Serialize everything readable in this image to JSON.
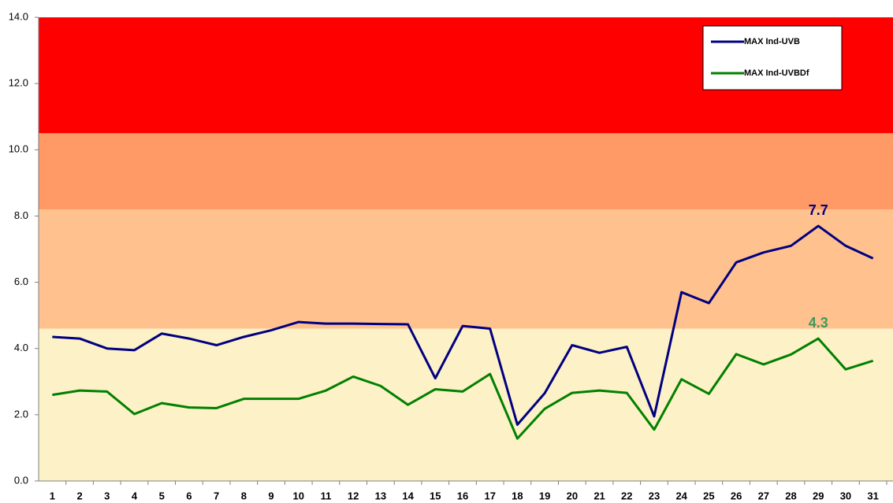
{
  "chart_data": {
    "type": "line",
    "categories": [
      "1",
      "2",
      "3",
      "4",
      "5",
      "6",
      "7",
      "8",
      "9",
      "10",
      "11",
      "12",
      "13",
      "14",
      "15",
      "16",
      "17",
      "18",
      "19",
      "20",
      "21",
      "22",
      "23",
      "24",
      "25",
      "26",
      "27",
      "28",
      "29",
      "30",
      "31"
    ],
    "series": [
      {
        "name": "MAX Ind-UVB",
        "color": "#000080",
        "label_color": "#000080",
        "values": [
          4.35,
          4.3,
          4.0,
          3.95,
          4.45,
          4.3,
          4.1,
          4.35,
          4.55,
          4.8,
          4.75,
          4.75,
          4.74,
          4.73,
          3.1,
          4.68,
          4.6,
          1.7,
          2.65,
          4.1,
          3.87,
          4.05,
          1.95,
          5.7,
          5.37,
          6.6,
          6.9,
          7.1,
          7.7,
          7.1,
          6.72
        ],
        "value_labels": [
          null,
          null,
          null,
          null,
          null,
          null,
          null,
          null,
          null,
          null,
          null,
          null,
          null,
          null,
          null,
          null,
          null,
          null,
          null,
          null,
          null,
          null,
          null,
          null,
          null,
          null,
          null,
          null,
          "7.7",
          null,
          null
        ]
      },
      {
        "name": "MAX Ind-UVBDf",
        "color": "#008000",
        "label_color": "#3a9a5a",
        "values": [
          2.6,
          2.73,
          2.7,
          2.02,
          2.35,
          2.22,
          2.2,
          2.48,
          2.48,
          2.48,
          2.73,
          3.15,
          2.87,
          2.3,
          2.77,
          2.7,
          3.23,
          1.28,
          2.18,
          2.66,
          2.73,
          2.66,
          1.55,
          3.07,
          2.63,
          3.83,
          3.52,
          3.82,
          4.3,
          3.37,
          3.63
        ],
        "value_labels": [
          null,
          null,
          null,
          null,
          null,
          null,
          null,
          null,
          null,
          null,
          null,
          null,
          null,
          null,
          null,
          null,
          null,
          null,
          null,
          null,
          null,
          null,
          null,
          null,
          null,
          null,
          null,
          null,
          "4.3",
          null,
          null
        ]
      }
    ],
    "bands": [
      {
        "from": 0,
        "to": 4.6,
        "color": "#fdf1c7"
      },
      {
        "from": 4.6,
        "to": 8.2,
        "color": "#ffc28e"
      },
      {
        "from": 8.2,
        "to": 10.5,
        "color": "#ff9966"
      },
      {
        "from": 10.5,
        "to": 14,
        "color": "#ff0000"
      }
    ],
    "ylim": [
      0,
      14
    ],
    "yticks": [
      {
        "value": 0,
        "label": "0.0"
      },
      {
        "value": 2,
        "label": "2.0"
      },
      {
        "value": 4,
        "label": "4.0"
      },
      {
        "value": 6,
        "label": "6.0"
      },
      {
        "value": 8,
        "label": "8.0"
      },
      {
        "value": 10,
        "label": "10.0"
      },
      {
        "value": 12,
        "label": "12.0"
      },
      {
        "value": 14,
        "label": "14.0"
      }
    ],
    "legend": "upper right"
  }
}
